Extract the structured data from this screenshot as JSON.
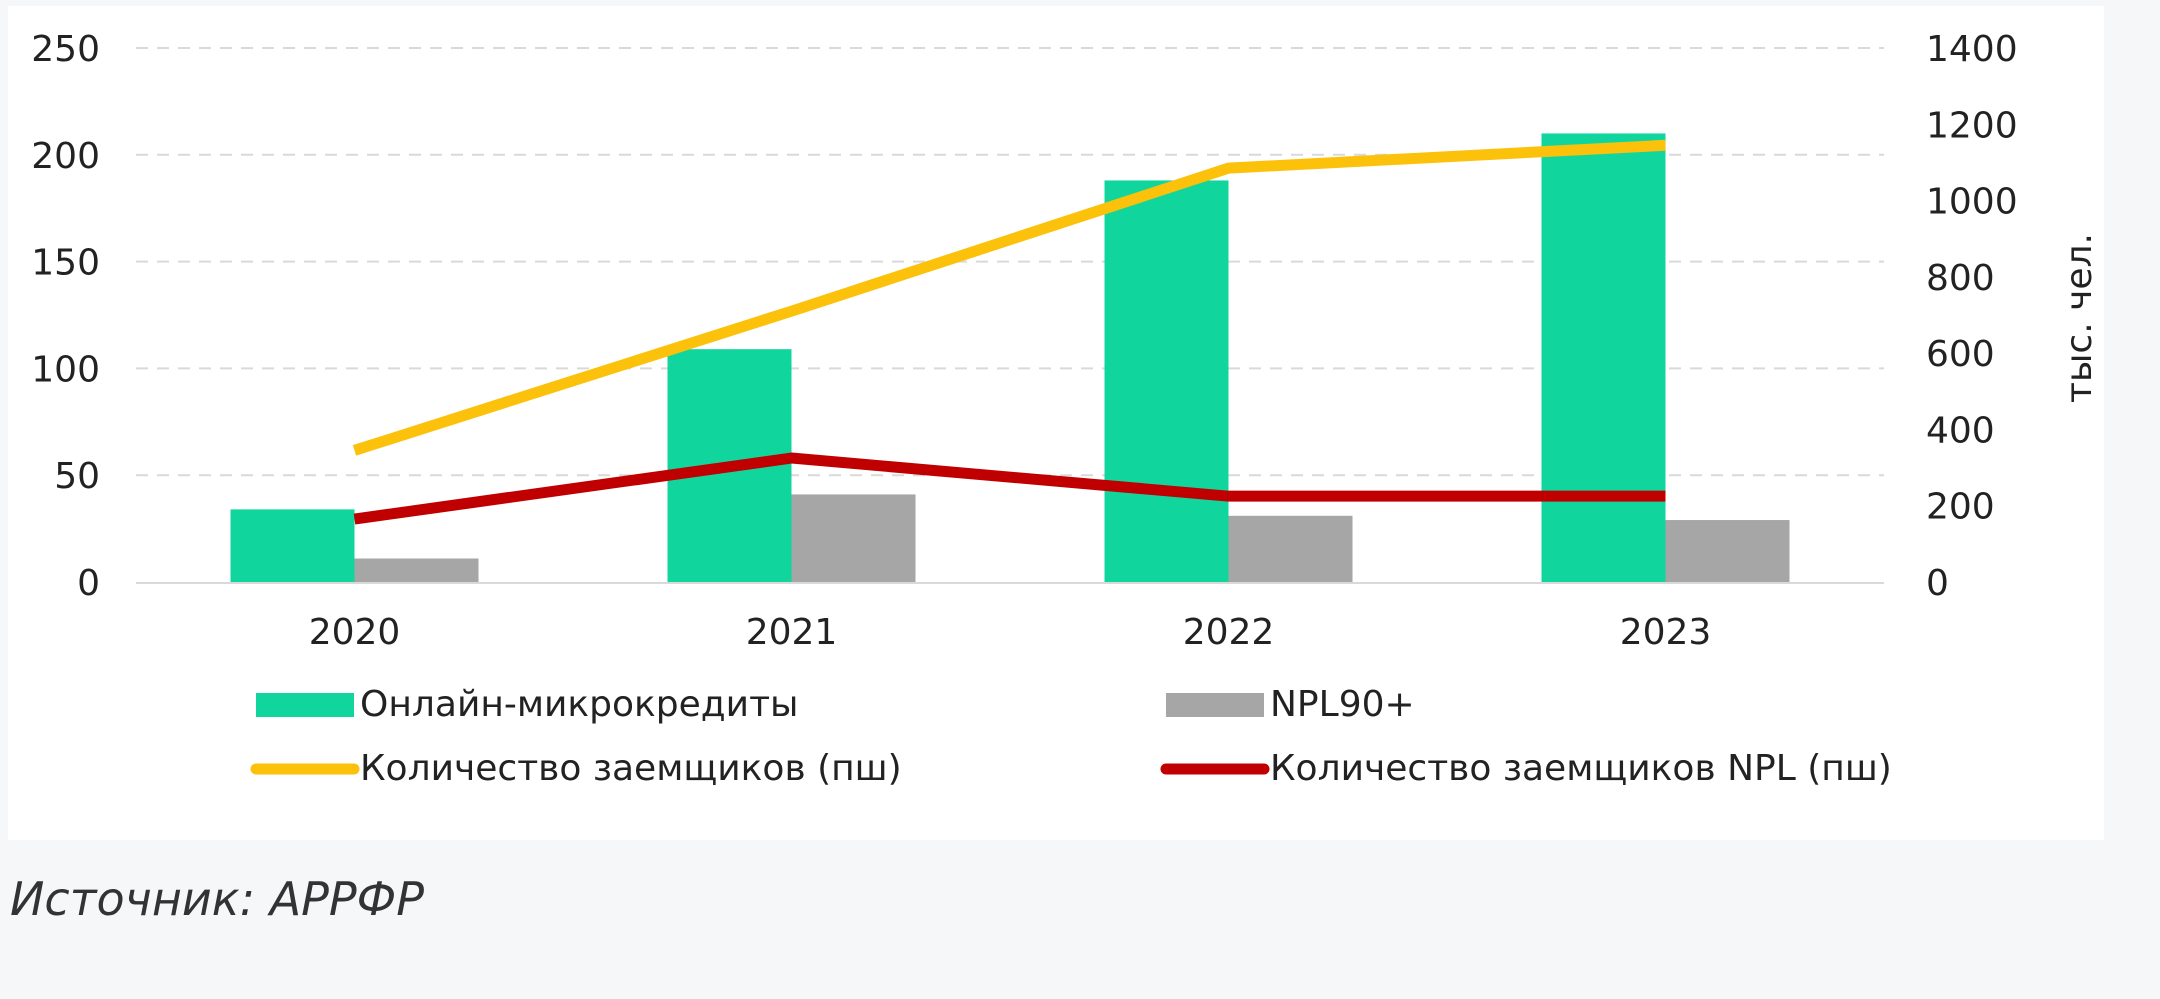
{
  "chart_data": {
    "type": "bar",
    "categories": [
      "2020",
      "2021",
      "2022",
      "2023"
    ],
    "series": [
      {
        "name": "Онлайн-микрокредиты",
        "kind": "bar",
        "axis": "left",
        "color": "#10d69e",
        "values": [
          34,
          109,
          188,
          210
        ]
      },
      {
        "name": "NPL90+",
        "kind": "bar",
        "axis": "left",
        "color": "#a6a6a6",
        "values": [
          11,
          41,
          31,
          29
        ]
      },
      {
        "name": "Количество заемщиков (пш)",
        "kind": "line",
        "axis": "right",
        "color": "#fcc10a",
        "values": [
          345,
          710,
          1085,
          1145
        ]
      },
      {
        "name": "Количество заемщиков NPL (пш)",
        "kind": "line",
        "axis": "right",
        "color": "#c00000",
        "values": [
          165,
          325,
          225,
          225
        ]
      }
    ],
    "left_axis": {
      "ylim": [
        0,
        250
      ],
      "ticks": [
        "0",
        "50",
        "100",
        "150",
        "200",
        "250"
      ]
    },
    "right_axis": {
      "ylim": [
        0,
        1400
      ],
      "ticks": [
        "0",
        "200",
        "400",
        "600",
        "800",
        "1000",
        "1200",
        "1400"
      ],
      "label": "тыс. чел."
    },
    "grid": true,
    "legend_position": "bottom"
  },
  "source_note": "Источник: АРРФР"
}
